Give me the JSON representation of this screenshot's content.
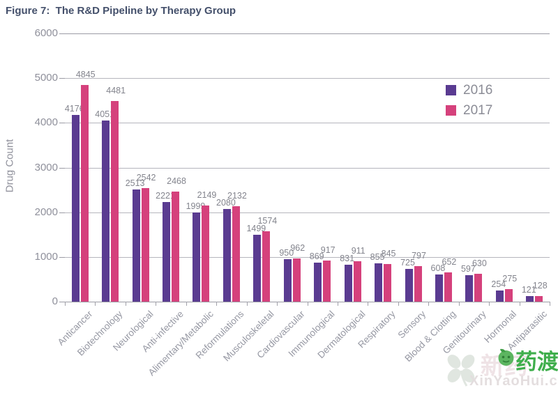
{
  "title": "Figure 7:  The R&D Pipeline by Therapy Group",
  "chart_data": {
    "type": "bar",
    "title": "The R&D Pipeline by Therapy Group",
    "xlabel": "",
    "ylabel": "Drug Count",
    "ylim": [
      0,
      6000
    ],
    "yticks": [
      0,
      1000,
      2000,
      3000,
      4000,
      5000,
      6000
    ],
    "grid": true,
    "legend_position": "top-right",
    "categories": [
      "Anticancer",
      "Biotechnology",
      "Neurological",
      "Anti-infective",
      "Alimentary/Metabolic",
      "Reformulations",
      "Musculoskeletal",
      "Cardiovascular",
      "Immunological",
      "Dermatological",
      "Respiratory",
      "Sensory",
      "Blood & Clotting",
      "Genitourinary",
      "Hormonal",
      "Antiparasitic"
    ],
    "series": [
      {
        "name": "2016",
        "color": "#5a3b91",
        "values": [
          4176,
          4051,
          2513,
          2221,
          1999,
          2080,
          1499,
          950,
          869,
          831,
          855,
          725,
          608,
          597,
          254,
          121
        ]
      },
      {
        "name": "2017",
        "color": "#d5417c",
        "values": [
          4845,
          4481,
          2542,
          2468,
          2149,
          2132,
          1574,
          962,
          917,
          911,
          845,
          797,
          652,
          630,
          275,
          128
        ]
      }
    ]
  },
  "colors": {
    "title_text": "#44506b",
    "axis_text": "#8f909b",
    "gridline": "#b5b5bd",
    "axis_line": "#9b9ba4",
    "bar_2016": "#5a3b91",
    "bar_2017": "#d5417c",
    "watermark_green": "#3fae4c"
  },
  "watermark": {
    "ghost_text": "新药",
    "brand": "药渡",
    "url_text": "XinYaoHui.com"
  }
}
